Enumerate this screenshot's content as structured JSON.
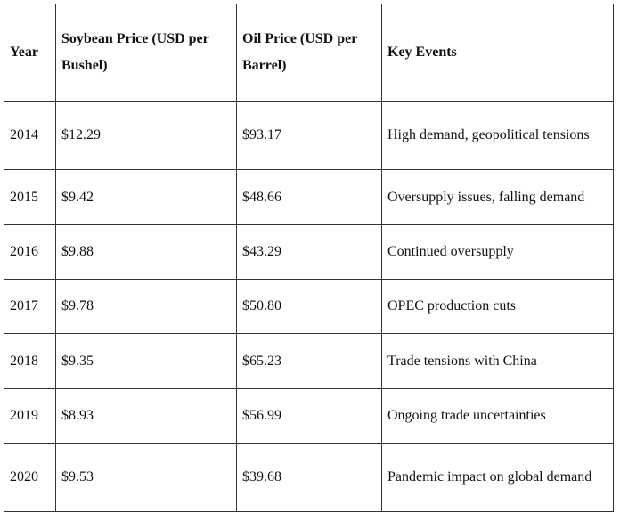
{
  "table": {
    "header": [
      "Year",
      "Soybean Price (USD per Bushel)",
      "Oil Price (USD per Barrel)",
      "Key Events"
    ],
    "rows": [
      [
        "2014",
        "$12.29",
        "$93.17",
        "High demand, geopolitical tensions"
      ],
      [
        "2015",
        "$9.42",
        "$48.66",
        "Oversupply issues, falling demand"
      ],
      [
        "2016",
        "$9.88",
        "$43.29",
        "Continued oversupply"
      ],
      [
        "2017",
        "$9.78",
        "$50.80",
        "OPEC production cuts"
      ],
      [
        "2018",
        "$9.35",
        "$65.23",
        "Trade tensions with China"
      ],
      [
        "2019",
        "$8.93",
        "$56.99",
        "Ongoing trade uncertainties"
      ],
      [
        "2020",
        "$9.53",
        "$39.68",
        "Pandemic impact on global demand"
      ]
    ]
  }
}
